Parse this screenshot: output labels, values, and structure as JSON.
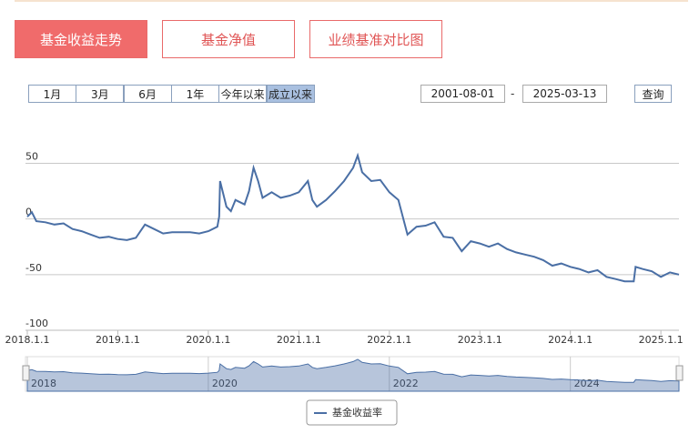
{
  "ui": {
    "tabs": [
      "基金收益走势",
      "基金净值",
      "业绩基准对比图"
    ],
    "ranges": [
      "1月",
      "3月",
      "6月",
      "1年",
      "今年以来",
      "成立以来"
    ],
    "start_date": "2001-08-01",
    "end_date": "2025-03-13",
    "date_separator": "-",
    "query": "查询"
  },
  "chart_data": {
    "type": "line",
    "x": [
      2018.0,
      2018.05,
      2018.1,
      2018.2,
      2018.3,
      2018.4,
      2018.5,
      2018.6,
      2018.7,
      2018.8,
      2018.9,
      2019.0,
      2019.1,
      2019.2,
      2019.25,
      2019.3,
      2019.4,
      2019.5,
      2019.6,
      2019.7,
      2019.8,
      2019.9,
      2020.0,
      2020.1,
      2020.12,
      2020.13,
      2020.2,
      2020.25,
      2020.3,
      2020.4,
      2020.45,
      2020.5,
      2020.55,
      2020.6,
      2020.7,
      2020.8,
      2020.9,
      2021.0,
      2021.1,
      2021.15,
      2021.2,
      2021.3,
      2021.4,
      2021.5,
      2021.6,
      2021.65,
      2021.7,
      2021.8,
      2021.9,
      2022.0,
      2022.1,
      2022.2,
      2022.3,
      2022.4,
      2022.5,
      2022.6,
      2022.7,
      2022.8,
      2022.9,
      2023.0,
      2023.1,
      2023.2,
      2023.3,
      2023.4,
      2023.5,
      2023.6,
      2023.7,
      2023.8,
      2023.9,
      2024.0,
      2024.1,
      2024.2,
      2024.3,
      2024.4,
      2024.5,
      2024.6,
      2024.7,
      2024.72,
      2024.8,
      2024.9,
      2025.0,
      2025.1,
      2025.2
    ],
    "series": [
      {
        "name": "基金收益率",
        "color": "#4a6fa5",
        "values": [
          2,
          6,
          -2,
          -3,
          -5,
          -4,
          -9,
          -11,
          -14,
          -17,
          -16,
          -18,
          -19,
          -17,
          -11,
          -5,
          -9,
          -13,
          -12,
          -12,
          -12,
          -13,
          -11,
          -7,
          2,
          34,
          11,
          7,
          17,
          13,
          25,
          46,
          34,
          19,
          24,
          19,
          21,
          24,
          34,
          17,
          11,
          17,
          25,
          34,
          46,
          57,
          42,
          34,
          35,
          24,
          17,
          -14,
          -7,
          -6,
          -3,
          -16,
          -17,
          -29,
          -20,
          -22,
          -25,
          -22,
          -27,
          -30,
          -32,
          -34,
          -37,
          -42,
          -40,
          -43,
          -45,
          -48,
          -46,
          -52,
          -54,
          -56,
          -56,
          -43,
          -45,
          -47,
          -52,
          -48,
          -50
        ]
      }
    ],
    "xlim": [
      2017.98,
      2025.2
    ],
    "xticks": [
      {
        "value": 2018,
        "label": "2018.1.1"
      },
      {
        "value": 2019,
        "label": "2019.1.1"
      },
      {
        "value": 2020,
        "label": "2020.1.1"
      },
      {
        "value": 2021,
        "label": "2021.1.1"
      },
      {
        "value": 2022,
        "label": "2022.1.1"
      },
      {
        "value": 2023,
        "label": "2023.1.1"
      },
      {
        "value": 2024,
        "label": "2024.1.1"
      },
      {
        "value": 2025,
        "label": "2025.1.1"
      }
    ],
    "ylim": [
      -100,
      70
    ],
    "yticks": [
      50,
      0,
      -50,
      -100
    ],
    "grid": true,
    "navigator": {
      "xticks": [
        2018,
        2020,
        2022,
        2024
      ]
    }
  }
}
